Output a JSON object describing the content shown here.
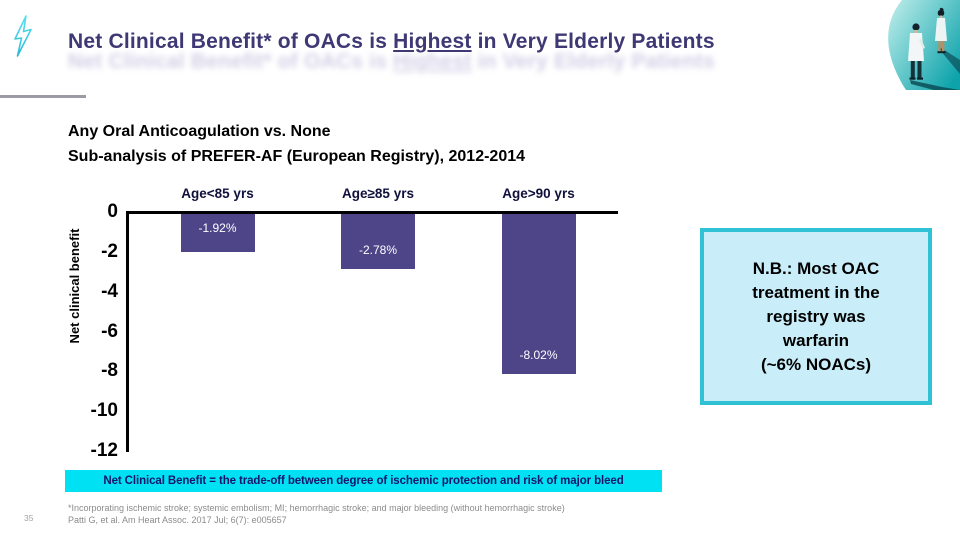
{
  "slide": {
    "page_number": "35",
    "header": {
      "title_prefix": "Net Clinical Benefit* of OACs is ",
      "title_underlined": "Highest",
      "title_suffix": " in Very Elderly Patients"
    },
    "subtitle": {
      "line1": "Any Oral Anticoagulation vs. None",
      "line2": "Sub-analysis of PREFER-AF (European Registry), 2012-2014"
    },
    "note_box": {
      "lines": [
        "N.B.: Most OAC",
        "treatment in the",
        "registry was",
        "warfarin",
        "(~6% NOACs)"
      ]
    },
    "definition_bar": {
      "text": "Net Clinical Benefit = the trade-off between degree of ischemic protection and risk of major bleed"
    },
    "footnotes": {
      "line1": "*Incorporating ischemic stroke; systemic embolism; MI; hemorrhagic stroke; and major bleeding (without hemorrhagic stroke)",
      "line2": "Patti G,  et al. Am Heart Assoc. 2017 Jul; 6(7): e005657"
    },
    "icons": {
      "lightning": "lightning-bolt-icon",
      "illustration": "two-doctors-illustration"
    }
  },
  "colors": {
    "title": "#3e3874",
    "bar": "#4e4589",
    "cyan_strip": "#00e1f4",
    "strip_text": "#15156a",
    "note_fill": "#c9eef9",
    "note_border": "#2fc2d4",
    "teal_accent": "#12a7ad",
    "footnote_gray": "#8b8b8b"
  },
  "chart_data": {
    "type": "bar",
    "title": "",
    "categories": [
      "Age<85 yrs",
      "Age≥85 yrs",
      "Age>90 yrs"
    ],
    "values": [
      -1.92,
      -2.78,
      -8.02
    ],
    "labels": [
      "-1.92%",
      "-2.78%",
      "-8.02%"
    ],
    "label_positions": [
      "top",
      "bottom",
      "bottom"
    ],
    "xlabel": "",
    "ylabel": "Net clinical benefit",
    "yticks": [
      0,
      -2,
      -4,
      -6,
      -8,
      -10,
      -12
    ],
    "ylim": [
      -12,
      0
    ],
    "bar_color": "#4e4589",
    "grid": false,
    "legend": false
  }
}
